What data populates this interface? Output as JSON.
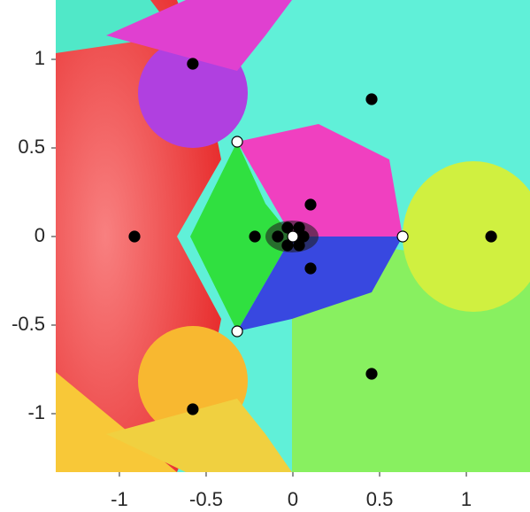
{
  "chart_data": {
    "type": "scatter",
    "xlim": [
      -1.367,
      1.367
    ],
    "ylim": [
      -1.33,
      1.335
    ],
    "xticks": [
      -1,
      -0.5,
      0,
      0.5,
      1
    ],
    "yticks": [
      -1,
      -0.5,
      0,
      0.5,
      1
    ],
    "series": [
      {
        "color": "#000000",
        "stroke": "#000000",
        "x": [
          -0.577,
          0.454,
          -0.913,
          -0.219,
          1.143,
          0.102,
          0.102,
          -0.577,
          0.454,
          -0.087,
          -0.031,
          -0.031,
          0.036,
          0.061,
          0.036
        ],
        "y": [
          0.975,
          0.775,
          0,
          0,
          0,
          0.18,
          -0.18,
          -0.975,
          -0.775,
          0,
          0.05,
          -0.05,
          0.05,
          0,
          -0.05
        ]
      },
      {
        "color": "#ffffff",
        "stroke": "#000000",
        "x": [
          -0.321,
          -0.321,
          0.633,
          0
        ],
        "y": [
          0.535,
          -0.535,
          0,
          0
        ]
      }
    ]
  }
}
